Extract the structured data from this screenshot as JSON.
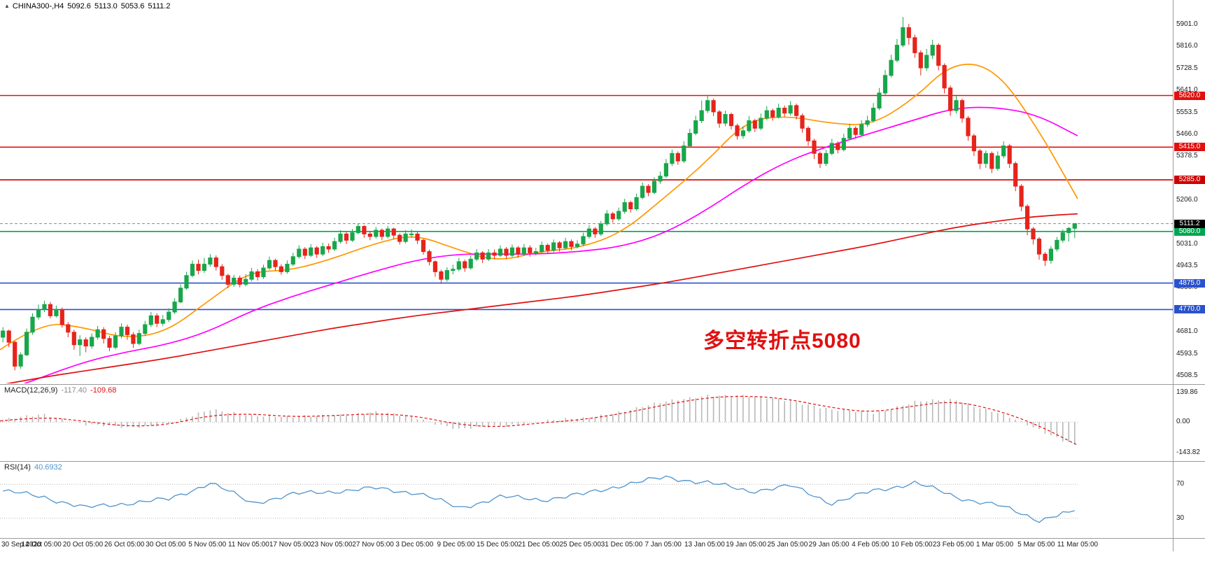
{
  "header": {
    "symbol_period": "CHINA300-,H4",
    "open": "5092.6",
    "high": "5113.0",
    "low": "5053.6",
    "close": "5111.2",
    "icon": "▲"
  },
  "annotation": {
    "text": "多空转折点5080",
    "color": "#e01010"
  },
  "macd": {
    "name": "MACD(12,26,9)",
    "value_main": "-117.40",
    "value_signal": "-109.68",
    "axis_labels": [
      "139.86",
      "0.00",
      "-143.82"
    ]
  },
  "rsi": {
    "name": "RSI(14)",
    "value": "40.6932",
    "axis_labels": [
      "70",
      "30"
    ]
  },
  "price_axis": {
    "ticks": [
      5901.0,
      5816.0,
      5728.5,
      5641.0,
      5553.5,
      5466.0,
      5378.5,
      5206.0,
      5031.0,
      4943.5,
      4856.0,
      4681.0,
      4593.5,
      4508.5
    ]
  },
  "colors": {
    "background": "#ffffff",
    "separator": "#9a9a9a",
    "candle_up": "#18a64b",
    "candle_down": "#e6241c",
    "macd_histogram": "#b8b8b8",
    "macd_signal": "#e01010",
    "rsi_line": "#4f94cd",
    "axis_text": "#1a1a1a"
  },
  "chart_data": {
    "type": "candlestick",
    "symbol": "CHINA300-",
    "timeframe": "H4",
    "price_range": [
      4482,
      5955
    ],
    "candles_per_label_interval": 7,
    "time_labels": [
      "30 Sep 2020",
      "14 Oct 05:00",
      "20 Oct 05:00",
      "26 Oct 05:00",
      "30 Oct 05:00",
      "5 Nov 05:00",
      "11 Nov 05:00",
      "17 Nov 05:00",
      "23 Nov 05:00",
      "27 Nov 05:00",
      "3 Dec 05:00",
      "9 Dec 05:00",
      "15 Dec 05:00",
      "21 Dec 05:00",
      "25 Dec 05:00",
      "31 Dec 05:00",
      "7 Jan 05:00",
      "13 Jan 05:00",
      "19 Jan 05:00",
      "25 Jan 05:00",
      "29 Jan 05:00",
      "4 Feb 05:00",
      "10 Feb 05:00",
      "23 Feb 05:00",
      "1 Mar 05:00",
      "5 Mar 05:00",
      "11 Mar 05:00"
    ],
    "candles_ohlc": [
      [
        4660,
        4700,
        4640,
        4685
      ],
      [
        4685,
        4690,
        4620,
        4640
      ],
      [
        4640,
        4645,
        4528,
        4545
      ],
      [
        4545,
        4600,
        4535,
        4590
      ],
      [
        4590,
        4695,
        4585,
        4680
      ],
      [
        4680,
        4755,
        4670,
        4740
      ],
      [
        4740,
        4790,
        4730,
        4770
      ],
      [
        4770,
        4805,
        4760,
        4790
      ],
      [
        4790,
        4800,
        4735,
        4745
      ],
      [
        4745,
        4785,
        4738,
        4770
      ],
      [
        4770,
        4778,
        4698,
        4710
      ],
      [
        4710,
        4720,
        4660,
        4680
      ],
      [
        4680,
        4690,
        4610,
        4630
      ],
      [
        4630,
        4668,
        4585,
        4650
      ],
      [
        4650,
        4660,
        4600,
        4625
      ],
      [
        4625,
        4675,
        4615,
        4660
      ],
      [
        4660,
        4705,
        4650,
        4690
      ],
      [
        4690,
        4700,
        4635,
        4655
      ],
      [
        4655,
        4665,
        4605,
        4620
      ],
      [
        4620,
        4680,
        4612,
        4665
      ],
      [
        4665,
        4715,
        4655,
        4700
      ],
      [
        4700,
        4710,
        4650,
        4670
      ],
      [
        4670,
        4680,
        4618,
        4635
      ],
      [
        4635,
        4690,
        4628,
        4675
      ],
      [
        4675,
        4725,
        4665,
        4710
      ],
      [
        4710,
        4760,
        4700,
        4745
      ],
      [
        4745,
        4755,
        4700,
        4715
      ],
      [
        4715,
        4748,
        4705,
        4730
      ],
      [
        4730,
        4775,
        4720,
        4760
      ],
      [
        4760,
        4815,
        4752,
        4800
      ],
      [
        4800,
        4870,
        4795,
        4855
      ],
      [
        4855,
        4920,
        4848,
        4905
      ],
      [
        4905,
        4965,
        4898,
        4950
      ],
      [
        4950,
        4968,
        4910,
        4925
      ],
      [
        4925,
        4975,
        4915,
        4950
      ],
      [
        4950,
        4990,
        4940,
        4975
      ],
      [
        4975,
        4985,
        4925,
        4940
      ],
      [
        4940,
        4950,
        4888,
        4905
      ],
      [
        4905,
        4912,
        4855,
        4870
      ],
      [
        4870,
        4908,
        4860,
        4895
      ],
      [
        4895,
        4905,
        4858,
        4870
      ],
      [
        4870,
        4910,
        4862,
        4890
      ],
      [
        4890,
        4935,
        4882,
        4920
      ],
      [
        4920,
        4930,
        4885,
        4900
      ],
      [
        4900,
        4948,
        4892,
        4935
      ],
      [
        4935,
        4980,
        4928,
        4965
      ],
      [
        4965,
        4972,
        4925,
        4940
      ],
      [
        4940,
        4950,
        4908,
        4920
      ],
      [
        4920,
        4965,
        4912,
        4950
      ],
      [
        4950,
        4995,
        4942,
        4980
      ],
      [
        4980,
        5025,
        4972,
        5010
      ],
      [
        5010,
        5018,
        4970,
        4985
      ],
      [
        4985,
        5030,
        4978,
        5015
      ],
      [
        5015,
        5022,
        4975,
        4990
      ],
      [
        4990,
        5035,
        4982,
        5020
      ],
      [
        5020,
        5032,
        4995,
        5010
      ],
      [
        5010,
        5055,
        5002,
        5040
      ],
      [
        5040,
        5085,
        5032,
        5070
      ],
      [
        5070,
        5078,
        5030,
        5045
      ],
      [
        5045,
        5090,
        5038,
        5075
      ],
      [
        5075,
        5112,
        5068,
        5100
      ],
      [
        5100,
        5105,
        5055,
        5070
      ],
      [
        5070,
        5082,
        5045,
        5060
      ],
      [
        5060,
        5098,
        5052,
        5085
      ],
      [
        5085,
        5092,
        5045,
        5060
      ],
      [
        5060,
        5102,
        5052,
        5090
      ],
      [
        5090,
        5095,
        5050,
        5065
      ],
      [
        5065,
        5072,
        5028,
        5040
      ],
      [
        5040,
        5085,
        5032,
        5070
      ],
      [
        5070,
        5088,
        5055,
        5070
      ],
      [
        5070,
        5078,
        5030,
        5045
      ],
      [
        5045,
        5050,
        4988,
        5000
      ],
      [
        5000,
        5008,
        4945,
        4960
      ],
      [
        4960,
        4965,
        4900,
        4920
      ],
      [
        4920,
        4928,
        4872,
        4890
      ],
      [
        4890,
        4938,
        4880,
        4925
      ],
      [
        4925,
        4948,
        4910,
        4930
      ],
      [
        4930,
        4975,
        4922,
        4960
      ],
      [
        4960,
        4968,
        4920,
        4935
      ],
      [
        4935,
        4985,
        4928,
        4970
      ],
      [
        4970,
        5010,
        4962,
        4995
      ],
      [
        4995,
        5002,
        4955,
        4970
      ],
      [
        4970,
        5010,
        4962,
        4995
      ],
      [
        4995,
        5008,
        4970,
        4985
      ],
      [
        4985,
        5025,
        4978,
        5010
      ],
      [
        5010,
        5018,
        4970,
        4985
      ],
      [
        4985,
        5028,
        4978,
        5015
      ],
      [
        5015,
        5022,
        4975,
        4990
      ],
      [
        4990,
        5030,
        4982,
        5015
      ],
      [
        5015,
        5025,
        4980,
        4995
      ],
      [
        4995,
        5015,
        4985,
        5000
      ],
      [
        5000,
        5040,
        4992,
        5025
      ],
      [
        5025,
        5032,
        4990,
        5005
      ],
      [
        5005,
        5048,
        4998,
        5035
      ],
      [
        5035,
        5042,
        5000,
        5015
      ],
      [
        5015,
        5055,
        5008,
        5040
      ],
      [
        5040,
        5048,
        5005,
        5020
      ],
      [
        5020,
        5045,
        5012,
        5030
      ],
      [
        5030,
        5075,
        5022,
        5060
      ],
      [
        5060,
        5105,
        5052,
        5090
      ],
      [
        5090,
        5098,
        5055,
        5070
      ],
      [
        5070,
        5122,
        5062,
        5110
      ],
      [
        5110,
        5165,
        5102,
        5150
      ],
      [
        5150,
        5158,
        5115,
        5130
      ],
      [
        5130,
        5175,
        5122,
        5160
      ],
      [
        5160,
        5210,
        5150,
        5195
      ],
      [
        5195,
        5202,
        5155,
        5170
      ],
      [
        5170,
        5230,
        5162,
        5215
      ],
      [
        5215,
        5275,
        5208,
        5260
      ],
      [
        5260,
        5268,
        5220,
        5235
      ],
      [
        5235,
        5295,
        5228,
        5280
      ],
      [
        5280,
        5318,
        5270,
        5300
      ],
      [
        5300,
        5368,
        5292,
        5350
      ],
      [
        5350,
        5405,
        5340,
        5390
      ],
      [
        5390,
        5398,
        5345,
        5360
      ],
      [
        5360,
        5438,
        5352,
        5420
      ],
      [
        5420,
        5488,
        5412,
        5470
      ],
      [
        5470,
        5540,
        5462,
        5520
      ],
      [
        5520,
        5600,
        5510,
        5560
      ],
      [
        5560,
        5622,
        5550,
        5600
      ],
      [
        5600,
        5608,
        5538,
        5555
      ],
      [
        5555,
        5562,
        5492,
        5510
      ],
      [
        5510,
        5560,
        5498,
        5545
      ],
      [
        5545,
        5552,
        5485,
        5500
      ],
      [
        5500,
        5508,
        5445,
        5460
      ],
      [
        5460,
        5498,
        5448,
        5480
      ],
      [
        5480,
        5538,
        5472,
        5520
      ],
      [
        5520,
        5528,
        5475,
        5490
      ],
      [
        5490,
        5548,
        5482,
        5530
      ],
      [
        5530,
        5578,
        5522,
        5560
      ],
      [
        5560,
        5568,
        5520,
        5535
      ],
      [
        5535,
        5588,
        5528,
        5570
      ],
      [
        5570,
        5580,
        5535,
        5550
      ],
      [
        5550,
        5598,
        5540,
        5580
      ],
      [
        5580,
        5588,
        5525,
        5540
      ],
      [
        5540,
        5548,
        5472,
        5490
      ],
      [
        5490,
        5498,
        5420,
        5440
      ],
      [
        5440,
        5448,
        5368,
        5390
      ],
      [
        5390,
        5398,
        5332,
        5350
      ],
      [
        5350,
        5405,
        5340,
        5390
      ],
      [
        5390,
        5448,
        5382,
        5430
      ],
      [
        5430,
        5438,
        5390,
        5405
      ],
      [
        5405,
        5468,
        5398,
        5450
      ],
      [
        5450,
        5508,
        5442,
        5490
      ],
      [
        5490,
        5498,
        5450,
        5465
      ],
      [
        5465,
        5522,
        5458,
        5505
      ],
      [
        5505,
        5540,
        5495,
        5520
      ],
      [
        5520,
        5590,
        5512,
        5570
      ],
      [
        5570,
        5650,
        5562,
        5630
      ],
      [
        5630,
        5722,
        5622,
        5700
      ],
      [
        5700,
        5782,
        5692,
        5760
      ],
      [
        5760,
        5845,
        5752,
        5820
      ],
      [
        5820,
        5932,
        5812,
        5890
      ],
      [
        5890,
        5905,
        5822,
        5850
      ],
      [
        5850,
        5862,
        5770,
        5790
      ],
      [
        5790,
        5800,
        5700,
        5730
      ],
      [
        5730,
        5805,
        5718,
        5780
      ],
      [
        5780,
        5842,
        5765,
        5820
      ],
      [
        5820,
        5828,
        5720,
        5740
      ],
      [
        5740,
        5748,
        5628,
        5650
      ],
      [
        5650,
        5660,
        5540,
        5560
      ],
      [
        5560,
        5618,
        5548,
        5600
      ],
      [
        5600,
        5608,
        5512,
        5530
      ],
      [
        5530,
        5538,
        5440,
        5460
      ],
      [
        5460,
        5468,
        5380,
        5400
      ],
      [
        5400,
        5408,
        5328,
        5350
      ],
      [
        5350,
        5402,
        5332,
        5390
      ],
      [
        5390,
        5398,
        5312,
        5330
      ],
      [
        5330,
        5398,
        5322,
        5380
      ],
      [
        5380,
        5438,
        5370,
        5420
      ],
      [
        5420,
        5428,
        5332,
        5350
      ],
      [
        5350,
        5358,
        5240,
        5260
      ],
      [
        5260,
        5268,
        5160,
        5180
      ],
      [
        5180,
        5188,
        5065,
        5090
      ],
      [
        5090,
        5098,
        5028,
        5050
      ],
      [
        5050,
        5058,
        4968,
        4990
      ],
      [
        4990,
        4998,
        4943,
        4965
      ],
      [
        4965,
        5022,
        4952,
        5010
      ],
      [
        5010,
        5058,
        5000,
        5045
      ],
      [
        5045,
        5088,
        5035,
        5075
      ],
      [
        5075,
        5098,
        5040,
        5092.6
      ],
      [
        5092.6,
        5113.0,
        5053.6,
        5111.2
      ]
    ],
    "moving_averages": [
      {
        "name": "ma-fast-orange",
        "color": "#ff9800",
        "values_at_labels": [
          4610,
          4720,
          4700,
          4655,
          4680,
          4800,
          4920,
          4925,
          4970,
          5030,
          5070,
          5010,
          4960,
          5000,
          5015,
          5075,
          5210,
          5350,
          5520,
          5540,
          5510,
          5500,
          5600,
          5755,
          5730,
          5500,
          5210
        ]
      },
      {
        "name": "ma-medium-magenta",
        "color": "#ff00ff",
        "values_at_labels": [
          4440,
          4500,
          4560,
          4600,
          4630,
          4680,
          4760,
          4820,
          4870,
          4920,
          4965,
          4990,
          4990,
          4990,
          5000,
          5020,
          5070,
          5160,
          5270,
          5360,
          5420,
          5470,
          5520,
          5570,
          5575,
          5545,
          5460
        ]
      },
      {
        "name": "ma-slow-red",
        "color": "#e01010",
        "values_at_labels": [
          4470,
          4500,
          4525,
          4550,
          4575,
          4605,
          4635,
          4665,
          4695,
          4720,
          4745,
          4765,
          4785,
          4805,
          4825,
          4850,
          4875,
          4905,
          4935,
          4965,
          4995,
          5025,
          5060,
          5095,
          5120,
          5140,
          5150
        ]
      }
    ],
    "horizontal_lines": [
      {
        "price": 5620.0,
        "label": "5620.0",
        "line_color": "#e01010",
        "box_color": "#e01010",
        "style": "solid"
      },
      {
        "price": 5415.0,
        "label": "5415.0",
        "line_color": "#e01010",
        "box_color": "#e01010",
        "style": "solid"
      },
      {
        "price": 5285.0,
        "label": "5285.0",
        "line_color": "#cc0000",
        "box_color": "#cc0000",
        "style": "solid"
      },
      {
        "price": 5111.2,
        "label": "5111.2",
        "line_color": "#888888",
        "box_color": "#000000",
        "style": "dashed",
        "role": "current-price"
      },
      {
        "price": 5080.0,
        "label": "5080.0",
        "line_color": "#00a651",
        "box_color": "#00a651",
        "style": "solid"
      },
      {
        "price": 4875.0,
        "label": "4875.0",
        "line_color": "#2a52cc",
        "box_color": "#2a52cc",
        "style": "solid"
      },
      {
        "price": 4770.0,
        "label": "4770.0",
        "line_color": "#2a52cc",
        "box_color": "#2a52cc",
        "style": "solid"
      }
    ],
    "indicators": [
      {
        "type": "macd",
        "params": [
          12,
          26,
          9
        ],
        "current_main": -117.4,
        "current_signal": -109.68,
        "value_range": [
          -170,
          170
        ],
        "histogram_at_labels": [
          10,
          35,
          -10,
          -30,
          -5,
          55,
          35,
          20,
          35,
          45,
          20,
          -35,
          -20,
          5,
          15,
          55,
          95,
          130,
          120,
          105,
          55,
          45,
          95,
          105,
          45,
          -40,
          -117.4
        ],
        "signal_at_labels": [
          5,
          25,
          5,
          -20,
          -15,
          30,
          40,
          25,
          30,
          40,
          30,
          -10,
          -25,
          -5,
          10,
          40,
          80,
          115,
          125,
          110,
          70,
          45,
          75,
          100,
          60,
          -10,
          -109.68
        ]
      },
      {
        "type": "rsi",
        "params": [
          14
        ],
        "current": 40.6932,
        "levels": [
          70,
          30
        ],
        "values_at_labels": [
          62,
          55,
          42,
          48,
          52,
          72,
          48,
          58,
          62,
          65,
          60,
          42,
          55,
          52,
          58,
          70,
          78,
          72,
          62,
          68,
          48,
          62,
          72,
          55,
          45,
          28,
          40.69
        ]
      }
    ]
  }
}
